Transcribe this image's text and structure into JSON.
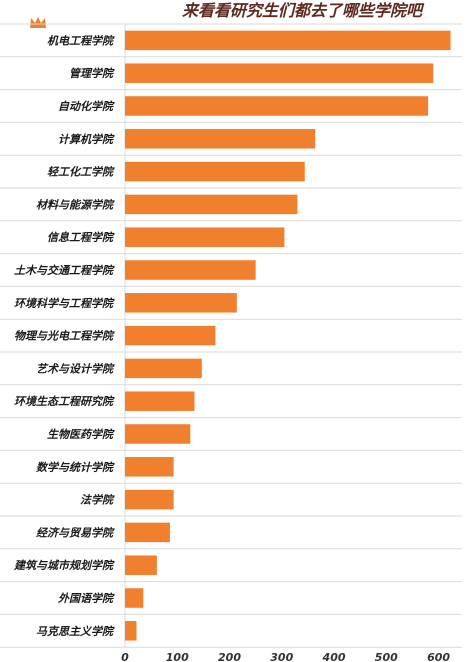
{
  "chart_data": {
    "type": "bar",
    "orientation": "horizontal",
    "title": "来看看研究生们都去了哪些学院吧",
    "categories": [
      "机电工程学院",
      "管理学院",
      "自动化学院",
      "计算机学院",
      "轻工化工学院",
      "材料与能源学院",
      "信息工程学院",
      "土木与交通工程学院",
      "环境科学与工程学院",
      "物理与光电工程学院",
      "艺术与设计学院",
      "环境生态工程研究院",
      "生物医药学院",
      "数学与统计学院",
      "法学院",
      "经济与贸易学院",
      "建筑与城市规划学院",
      "外国语学院",
      "马克思主义学院"
    ],
    "values": [
      623,
      590,
      580,
      364,
      344,
      330,
      305,
      250,
      214,
      173,
      147,
      133,
      125,
      93,
      93,
      86,
      61,
      35,
      22
    ],
    "xlim": [
      0,
      620
    ],
    "xticks": [
      "0",
      "100",
      "200",
      "300",
      "400",
      "500",
      "600"
    ],
    "xlabel": "",
    "ylabel": "",
    "grid": false,
    "legend": "none",
    "bar_color": "#f07f2e",
    "title_color": "#5e2a1f",
    "label_color": "#1a1a1a",
    "line_color": "#d9d9d9",
    "crown_color": "#f07f2e",
    "crown_icon": "crown-icon"
  }
}
